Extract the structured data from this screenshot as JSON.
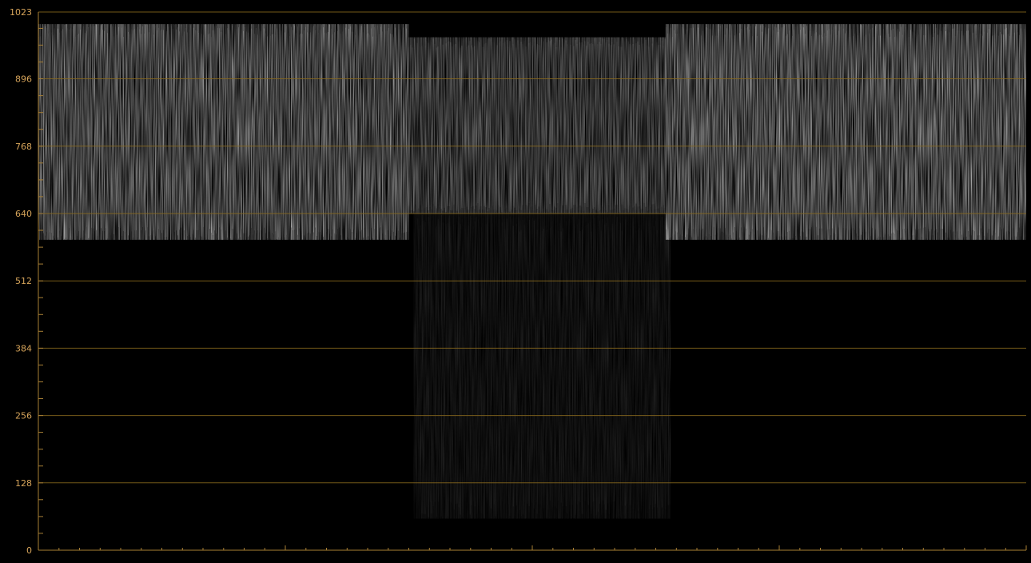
{
  "scope": {
    "kind": "waveform",
    "y_axis": {
      "range": [
        0,
        1023
      ],
      "labeled_ticks": [
        {
          "value": 1023,
          "label": "1023"
        },
        {
          "value": 896,
          "label": "896"
        },
        {
          "value": 768,
          "label": "768"
        },
        {
          "value": 640,
          "label": "640"
        },
        {
          "value": 512,
          "label": "512"
        },
        {
          "value": 384,
          "label": "384"
        },
        {
          "value": 256,
          "label": "256"
        },
        {
          "value": 128,
          "label": "128"
        },
        {
          "value": 0,
          "label": "0"
        }
      ],
      "minor_tick_step": 32
    },
    "x_axis": {
      "minor_tick_count": 48,
      "major_every": 12
    },
    "colors": {
      "background": "#000000",
      "graticule": "#8a6a1e",
      "tick": "#a77f35",
      "label": "#d6a45a",
      "trace": "#ffffff"
    }
  },
  "waveform_regions": [
    {
      "x_start": 0.0,
      "x_end": 0.375,
      "low": 590,
      "high": 1000,
      "intensity": 0.9
    },
    {
      "x_start": 0.375,
      "x_end": 0.635,
      "low": 640,
      "high": 975,
      "intensity": 0.7
    },
    {
      "x_start": 0.635,
      "x_end": 1.0,
      "low": 590,
      "high": 1000,
      "intensity": 0.95
    },
    {
      "x_start": 0.38,
      "x_end": 0.64,
      "low": 60,
      "high": 640,
      "intensity": 0.18
    }
  ]
}
